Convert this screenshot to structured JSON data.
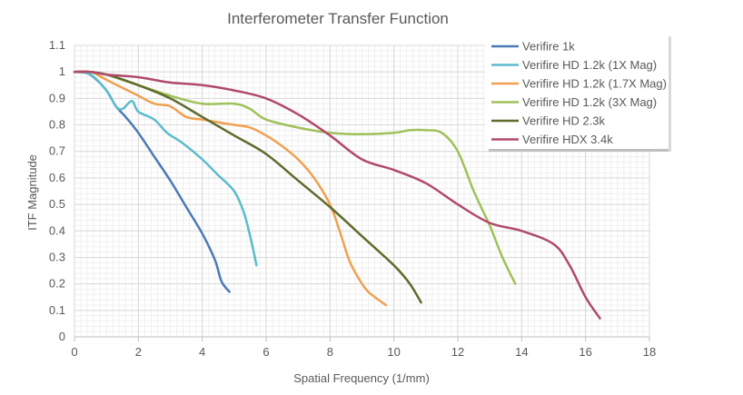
{
  "chart_data": {
    "type": "line",
    "title": "Interferometer Transfer Function",
    "xlabel": "Spatial Frequency (1/mm)",
    "ylabel": "ITF Magnitude",
    "xlim": [
      0,
      18
    ],
    "ylim": [
      0,
      1.1
    ],
    "x_ticks": [
      "0",
      "2",
      "4",
      "6",
      "8",
      "10",
      "12",
      "14",
      "16",
      "18"
    ],
    "y_ticks": [
      "0",
      "0.1",
      "0.2",
      "0.3",
      "0.4",
      "0.5",
      "0.6",
      "0.7",
      "0.8",
      "0.9",
      "1",
      "1.1"
    ],
    "grid": true,
    "legend_position": "top-right",
    "series": [
      {
        "name": "Verifire 1k",
        "color": "#4a7ab5",
        "points": [
          [
            0,
            1
          ],
          [
            0.3,
            1
          ],
          [
            0.6,
            0.98
          ],
          [
            1,
            0.93
          ],
          [
            1.3,
            0.87
          ],
          [
            1.6,
            0.83
          ],
          [
            2,
            0.77
          ],
          [
            2.5,
            0.68
          ],
          [
            3,
            0.59
          ],
          [
            3.5,
            0.49
          ],
          [
            4,
            0.39
          ],
          [
            4.4,
            0.29
          ],
          [
            4.6,
            0.21
          ],
          [
            4.85,
            0.17
          ]
        ]
      },
      {
        "name": "Verifire HD 1.2k (1X Mag)",
        "color": "#5bbccc",
        "points": [
          [
            0,
            1
          ],
          [
            0.5,
            0.99
          ],
          [
            1,
            0.93
          ],
          [
            1.3,
            0.87
          ],
          [
            1.5,
            0.86
          ],
          [
            1.8,
            0.89
          ],
          [
            2,
            0.85
          ],
          [
            2.5,
            0.82
          ],
          [
            2.9,
            0.77
          ],
          [
            3.4,
            0.73
          ],
          [
            4,
            0.67
          ],
          [
            4.5,
            0.61
          ],
          [
            5,
            0.55
          ],
          [
            5.3,
            0.47
          ],
          [
            5.5,
            0.38
          ],
          [
            5.7,
            0.27
          ]
        ]
      },
      {
        "name": "Verifire HD 1.2k (1.7X Mag)",
        "color": "#f0a050",
        "points": [
          [
            0,
            1
          ],
          [
            0.5,
            1
          ],
          [
            1,
            0.97
          ],
          [
            1.5,
            0.94
          ],
          [
            2,
            0.91
          ],
          [
            2.5,
            0.88
          ],
          [
            3,
            0.87
          ],
          [
            3.5,
            0.83
          ],
          [
            4,
            0.82
          ],
          [
            4.5,
            0.81
          ],
          [
            5,
            0.8
          ],
          [
            5.5,
            0.79
          ],
          [
            6,
            0.76
          ],
          [
            6.5,
            0.72
          ],
          [
            7,
            0.67
          ],
          [
            7.5,
            0.6
          ],
          [
            8,
            0.5
          ],
          [
            8.3,
            0.4
          ],
          [
            8.6,
            0.29
          ],
          [
            8.9,
            0.22
          ],
          [
            9.2,
            0.17
          ],
          [
            9.75,
            0.12
          ]
        ]
      },
      {
        "name": "Verifire HD 1.2k (3X Mag)",
        "color": "#9fc15a",
        "points": [
          [
            0,
            1
          ],
          [
            0.5,
            1
          ],
          [
            1,
            0.99
          ],
          [
            1.5,
            0.97
          ],
          [
            2,
            0.95
          ],
          [
            3,
            0.91
          ],
          [
            4,
            0.88
          ],
          [
            5,
            0.88
          ],
          [
            5.5,
            0.86
          ],
          [
            6,
            0.82
          ],
          [
            7,
            0.79
          ],
          [
            8,
            0.77
          ],
          [
            9,
            0.765
          ],
          [
            10,
            0.77
          ],
          [
            10.5,
            0.78
          ],
          [
            11,
            0.78
          ],
          [
            11.5,
            0.77
          ],
          [
            12,
            0.7
          ],
          [
            12.5,
            0.55
          ],
          [
            13,
            0.42
          ],
          [
            13.4,
            0.3
          ],
          [
            13.8,
            0.2
          ]
        ]
      },
      {
        "name": "Verifire HD 2.3k",
        "color": "#5f6b2c",
        "points": [
          [
            0,
            1
          ],
          [
            0.5,
            1
          ],
          [
            1,
            0.99
          ],
          [
            2,
            0.95
          ],
          [
            3,
            0.9
          ],
          [
            4,
            0.83
          ],
          [
            5,
            0.76
          ],
          [
            6,
            0.69
          ],
          [
            7,
            0.59
          ],
          [
            8,
            0.49
          ],
          [
            9,
            0.38
          ],
          [
            10,
            0.27
          ],
          [
            10.5,
            0.2
          ],
          [
            10.85,
            0.13
          ]
        ]
      },
      {
        "name": "Verifire HDX 3.4k",
        "color": "#b04a6b",
        "points": [
          [
            0,
            1
          ],
          [
            0.5,
            1
          ],
          [
            1,
            0.99
          ],
          [
            2,
            0.98
          ],
          [
            3,
            0.96
          ],
          [
            4,
            0.95
          ],
          [
            5,
            0.93
          ],
          [
            6,
            0.9
          ],
          [
            7,
            0.84
          ],
          [
            8,
            0.76
          ],
          [
            9,
            0.67
          ],
          [
            10,
            0.63
          ],
          [
            11,
            0.58
          ],
          [
            12,
            0.5
          ],
          [
            13,
            0.43
          ],
          [
            14,
            0.4
          ],
          [
            15,
            0.35
          ],
          [
            15.5,
            0.27
          ],
          [
            16,
            0.15
          ],
          [
            16.45,
            0.07
          ]
        ]
      }
    ]
  }
}
